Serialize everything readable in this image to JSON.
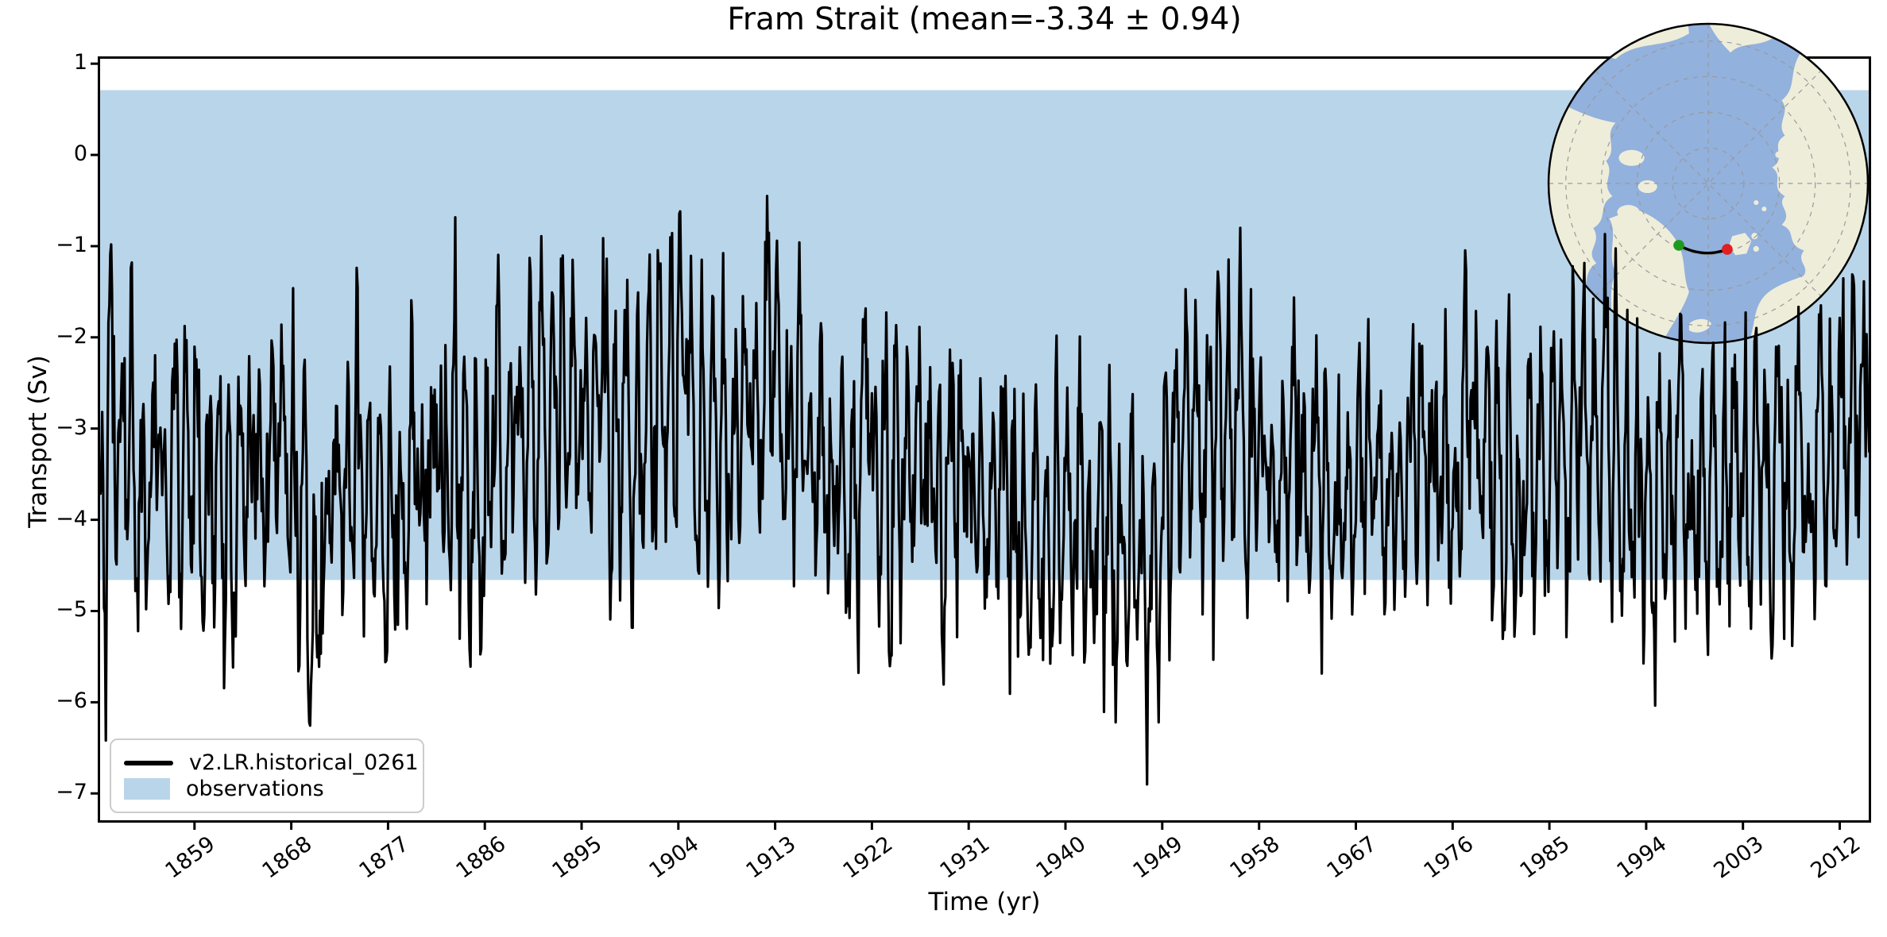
{
  "figure": {
    "kind": "matplotlib-style time series figure with polar inset map",
    "background_color": "#ffffff"
  },
  "chart_data": {
    "type": "line",
    "title": "Fram Strait (mean=-3.34 ± 0.94)",
    "xlabel": "Time (yr)",
    "ylabel": "Transport (Sv)",
    "xlim": [
      1850,
      2014.92
    ],
    "ylim": [
      -7.32,
      1.08
    ],
    "grid": false,
    "legend_position": "lower left",
    "xticks": [
      {
        "v": 1859,
        "label": "1859"
      },
      {
        "v": 1868,
        "label": "1868"
      },
      {
        "v": 1877,
        "label": "1877"
      },
      {
        "v": 1886,
        "label": "1886"
      },
      {
        "v": 1895,
        "label": "1895"
      },
      {
        "v": 1904,
        "label": "1904"
      },
      {
        "v": 1913,
        "label": "1913"
      },
      {
        "v": 1922,
        "label": "1922"
      },
      {
        "v": 1931,
        "label": "1931"
      },
      {
        "v": 1940,
        "label": "1940"
      },
      {
        "v": 1949,
        "label": "1949"
      },
      {
        "v": 1958,
        "label": "1958"
      },
      {
        "v": 1967,
        "label": "1967"
      },
      {
        "v": 1976,
        "label": "1976"
      },
      {
        "v": 1985,
        "label": "1985"
      },
      {
        "v": 1994,
        "label": "1994"
      },
      {
        "v": 2003,
        "label": "2003"
      },
      {
        "v": 2012,
        "label": "2012"
      }
    ],
    "yticks": [
      {
        "v": 1,
        "label": "1"
      },
      {
        "v": 0,
        "label": "0"
      },
      {
        "v": -1,
        "label": "−1"
      },
      {
        "v": -2,
        "label": "−2"
      },
      {
        "v": -3,
        "label": "−3"
      },
      {
        "v": -4,
        "label": "−4"
      },
      {
        "v": -5,
        "label": "−5"
      },
      {
        "v": -6,
        "label": "−6"
      },
      {
        "v": -7,
        "label": "−7"
      }
    ],
    "band": {
      "name": "observations",
      "color": "#b9d5ea",
      "range": [
        -4.66,
        0.71
      ]
    },
    "series": [
      {
        "name": "v2.LR.historical_0261",
        "color": "#000000",
        "line_width": 3.2,
        "mean": -3.34,
        "std": 0.94,
        "cadence": "monthly",
        "anchors": [
          [
            1850.0,
            -3.4
          ],
          [
            1851.5,
            -2.9
          ],
          [
            1853,
            -3.3
          ],
          [
            1855,
            -3.7
          ],
          [
            1857,
            -3.3
          ],
          [
            1859,
            -3.5
          ],
          [
            1861,
            -3.9
          ],
          [
            1863,
            -4.1
          ],
          [
            1865,
            -3.5
          ],
          [
            1867,
            -3.3
          ],
          [
            1869,
            -3.9
          ],
          [
            1871,
            -4.4
          ],
          [
            1872,
            -3.9
          ],
          [
            1874,
            -3.3
          ],
          [
            1876,
            -3.5
          ],
          [
            1878,
            -3.7
          ],
          [
            1880,
            -3.4
          ],
          [
            1882,
            -3.6
          ],
          [
            1884,
            -3.9
          ],
          [
            1886,
            -3.5
          ],
          [
            1888,
            -3.2
          ],
          [
            1890,
            -3.0
          ],
          [
            1892,
            -2.7
          ],
          [
            1894,
            -3.0
          ],
          [
            1896,
            -2.7
          ],
          [
            1898,
            -3.1
          ],
          [
            1900,
            -2.9
          ],
          [
            1902,
            -2.5
          ],
          [
            1904,
            -2.8
          ],
          [
            1906,
            -3.2
          ],
          [
            1908,
            -3.4
          ],
          [
            1910,
            -3.1
          ],
          [
            1912,
            -2.7
          ],
          [
            1914,
            -3.0
          ],
          [
            1916,
            -3.4
          ],
          [
            1918,
            -3.6
          ],
          [
            1920,
            -3.4
          ],
          [
            1922,
            -3.3
          ],
          [
            1924,
            -3.6
          ],
          [
            1926,
            -3.4
          ],
          [
            1928,
            -3.5
          ],
          [
            1930,
            -3.6
          ],
          [
            1932,
            -3.9
          ],
          [
            1934,
            -4.0
          ],
          [
            1936,
            -4.0
          ],
          [
            1938,
            -4.2
          ],
          [
            1940,
            -3.9
          ],
          [
            1942,
            -4.1
          ],
          [
            1944,
            -4.4
          ],
          [
            1946,
            -4.3
          ],
          [
            1948,
            -4.5
          ],
          [
            1950,
            -3.7
          ],
          [
            1951.5,
            -3.0
          ],
          [
            1953,
            -2.9
          ],
          [
            1955,
            -3.1
          ],
          [
            1957,
            -3.4
          ],
          [
            1959,
            -3.6
          ],
          [
            1961,
            -3.4
          ],
          [
            1963,
            -3.6
          ],
          [
            1965,
            -3.7
          ],
          [
            1967,
            -3.4
          ],
          [
            1969,
            -3.5
          ],
          [
            1971,
            -3.6
          ],
          [
            1973,
            -3.4
          ],
          [
            1975,
            -3.5
          ],
          [
            1977,
            -3.3
          ],
          [
            1979,
            -3.5
          ],
          [
            1981,
            -3.6
          ],
          [
            1983,
            -3.5
          ],
          [
            1985,
            -3.3
          ],
          [
            1987,
            -3.0
          ],
          [
            1989,
            -2.9
          ],
          [
            1991,
            -3.2
          ],
          [
            1993,
            -3.5
          ],
          [
            1995,
            -3.7
          ],
          [
            1997,
            -3.9
          ],
          [
            1999,
            -3.8
          ],
          [
            2001,
            -3.6
          ],
          [
            2003,
            -3.5
          ],
          [
            2005,
            -3.3
          ],
          [
            2007,
            -3.5
          ],
          [
            2009,
            -3.4
          ],
          [
            2011,
            -3.1
          ],
          [
            2013,
            -2.9
          ],
          [
            2014.9,
            -2.9
          ]
        ],
        "noise": {
          "seed": 42,
          "sigma": 0.58,
          "ar": 0.5,
          "seasonal_amplitude": 0.95,
          "seasonal_phase": 0.3,
          "clip": [
            -6.9,
            -0.45
          ]
        },
        "observed_extremes": {
          "max": [
            1902.4,
            -0.43
          ],
          "min": [
            1948.0,
            -6.9
          ]
        }
      }
    ]
  },
  "legend": {
    "items": [
      {
        "label": "v2.LR.historical_0261",
        "swatch": "line",
        "color": "#000000"
      },
      {
        "label": "observations",
        "swatch": "patch",
        "color": "#b9d5ea"
      }
    ]
  },
  "inset_map": {
    "description": "Arctic polar stereographic inset showing the Fram Strait transect",
    "ocean_color": "#92b1dd",
    "land_color": "#eeedda",
    "graticule_color": "#9a9a9a",
    "outline_color": "#000000",
    "transect_color": "#000000",
    "start_marker_color": "#1e9b1e",
    "end_marker_color": "#e02020"
  }
}
